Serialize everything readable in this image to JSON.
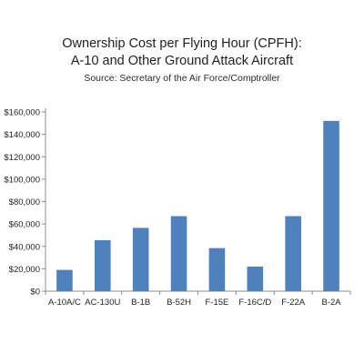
{
  "chart_data": {
    "type": "bar",
    "title": "Ownership Cost per Flying Hour (CPFH):",
    "title_line2": "A-10 and Other Ground Attack Aircraft",
    "subtitle": "Source: Secretary of the Air Force/Comptroller",
    "xlabel": "",
    "ylabel": "",
    "categories": [
      "A-10A/C",
      "AC-130U",
      "B-1B",
      "B-52H",
      "F-15E",
      "F-16C/D",
      "F-22A",
      "B-2A"
    ],
    "values": [
      19000,
      45500,
      56500,
      67000,
      38500,
      22000,
      67000,
      152000
    ],
    "ylim": [
      0,
      160000
    ],
    "y_ticks": [
      0,
      20000,
      40000,
      60000,
      80000,
      100000,
      120000,
      140000,
      160000
    ],
    "y_tick_labels": [
      "$0",
      "$20,000",
      "$40,000",
      "$60,000",
      "$80,000",
      "$100,000",
      "$120,000",
      "$140,000",
      "$160,000"
    ],
    "grid": false,
    "legend": "none",
    "bar_color": "#4f81bd",
    "axis_color": "#8c8c8c"
  }
}
